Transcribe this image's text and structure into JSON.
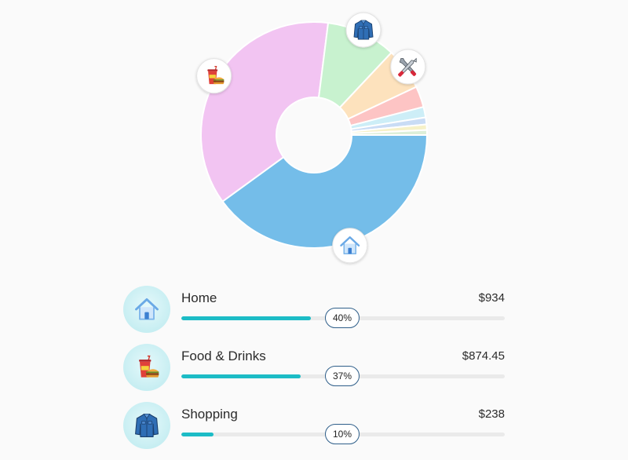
{
  "chart_data": {
    "type": "pie",
    "donut": true,
    "categories": [
      "Home",
      "Food & Drinks",
      "Shopping",
      "Tools",
      "",
      "",
      "",
      "",
      ""
    ],
    "values": [
      40,
      37,
      10,
      6,
      3,
      1.5,
      1,
      0.8,
      0.7
    ],
    "colors": [
      "#74bde9",
      "#f2c4f2",
      "#c8f2cf",
      "#fde2bd",
      "#fdc4c4",
      "#cdeef7",
      "#c9dcf5",
      "#f6f1c8",
      "#dcefd9"
    ],
    "icons": [
      "home-icon",
      "food-drinks-icon",
      "shirt-icon",
      "tools-icon"
    ]
  },
  "expenses": [
    {
      "name": "Home",
      "amount": "$934",
      "percent": "40%",
      "fill": 0.4,
      "icon": "home-icon"
    },
    {
      "name": "Food & Drinks",
      "amount": "$874.45",
      "percent": "37%",
      "fill": 0.37,
      "icon": "food-drinks-icon"
    },
    {
      "name": "Shopping",
      "amount": "$238",
      "percent": "10%",
      "fill": 0.1,
      "icon": "shirt-icon"
    }
  ]
}
